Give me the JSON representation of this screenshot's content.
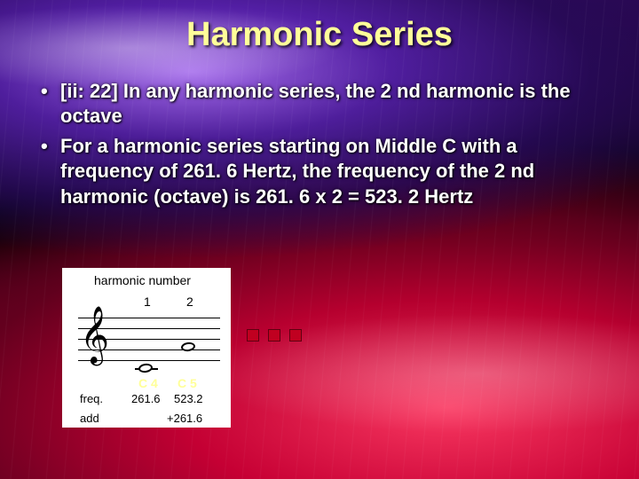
{
  "title": "Harmonic Series",
  "bullets": [
    "[ii: 22] In any harmonic series, the 2 nd harmonic is the octave",
    "For a harmonic series starting on Middle C with a frequency of 261. 6 Hertz, the frequency of the 2 nd harmonic (octave) is 261. 6 x 2 = 523. 2 Hertz"
  ],
  "music": {
    "harmonic_number_label": "harmonic number",
    "numbers": [
      "1",
      "2"
    ],
    "note_labels": [
      "C 4",
      "C 5"
    ],
    "freq_label": "freq.",
    "freq_values": [
      "261.6",
      "523.2"
    ],
    "add_label": "add",
    "add_value": "+261.6"
  },
  "colors": {
    "title_color": "#ffff99",
    "text_color": "#ffffff",
    "note_label_color": "#ffff99",
    "dot_color": "#c00020",
    "bg_purple": "#5a20c0",
    "bg_red": "#c8003c",
    "bg_black": "#000000"
  },
  "typography": {
    "title_fontsize": 38,
    "bullet_fontsize": 22,
    "music_label_fontsize": 14
  }
}
